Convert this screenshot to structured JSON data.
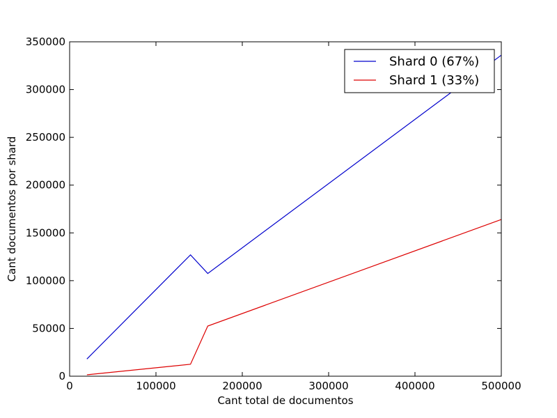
{
  "chart_data": {
    "type": "line",
    "title": "",
    "xlabel": "Cant total de documentos",
    "ylabel": "Cant documentos por shard",
    "xlim": [
      0,
      500000
    ],
    "ylim": [
      0,
      350000
    ],
    "xticks": [
      0,
      100000,
      200000,
      300000,
      400000,
      500000
    ],
    "yticks": [
      0,
      50000,
      100000,
      150000,
      200000,
      250000,
      300000,
      350000
    ],
    "grid": false,
    "legend_position": "top-right",
    "series": [
      {
        "name": "Shard 0 (67%)",
        "color": "#0000cc",
        "x": [
          20000,
          140000,
          160000,
          500000
        ],
        "y": [
          18000,
          127000,
          107500,
          336000
        ]
      },
      {
        "name": "Shard 1 (33%)",
        "color": "#dd0000",
        "x": [
          20000,
          140000,
          160000,
          500000
        ],
        "y": [
          1500,
          12500,
          52500,
          164000
        ]
      }
    ]
  }
}
